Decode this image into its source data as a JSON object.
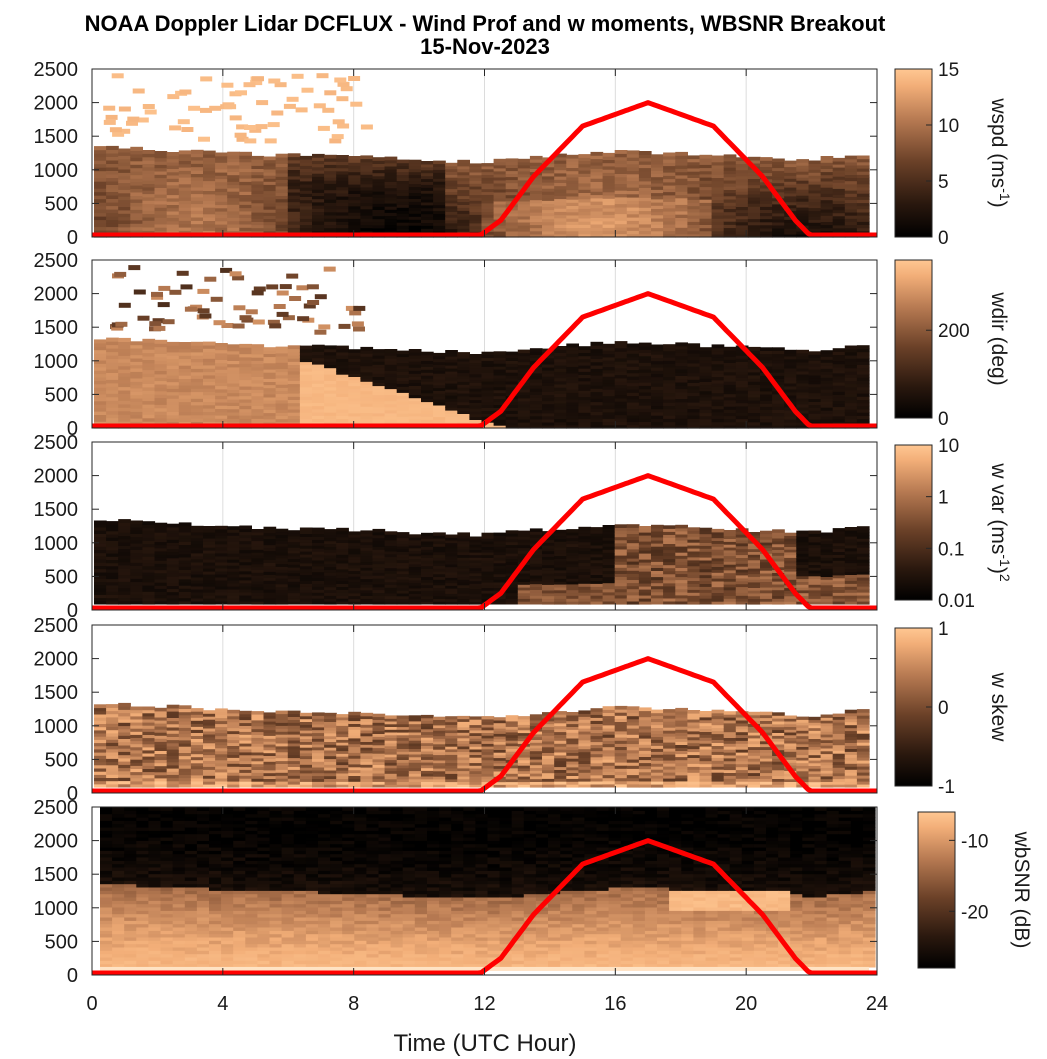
{
  "title": "NOAA Doppler Lidar DCFLUX - Wind Prof and w moments, WBSNR Breakout",
  "subtitle": "15-Nov-2023",
  "colors": {
    "colormap": [
      "#000000",
      "#2a180e",
      "#6b4128",
      "#b77a52",
      "#f2ae78",
      "#ffc792"
    ],
    "sun_curve": "#ff0000",
    "axes": "#262626",
    "grid": "#dcdcdc"
  },
  "chart_data": [
    {
      "type": "heatmap",
      "panel": "wspd",
      "x_unit": "UTC hour",
      "xlim": [
        0,
        24
      ],
      "ylim": [
        0,
        2500
      ],
      "yticks": [
        0,
        500,
        1000,
        1500,
        2000,
        2500
      ],
      "boundary_layer_top_m": {
        "x": [
          0,
          2,
          4,
          6,
          8,
          10,
          12,
          14,
          16,
          18,
          20,
          22,
          24
        ],
        "y": [
          1350,
          1300,
          1250,
          1220,
          1200,
          1150,
          1120,
          1200,
          1280,
          1250,
          1200,
          1150,
          1250
        ]
      },
      "colorbar": {
        "label": "wspd (ms<sup>-1</sup>)",
        "label_plain": "wspd (ms-1)",
        "range": [
          0,
          15
        ],
        "ticks": [
          "0",
          "5",
          "10",
          "15"
        ]
      },
      "sun_elevation_curve": {
        "x": [
          0,
          11.8,
          12.5,
          13.5,
          15,
          17,
          19,
          20.5,
          21.5,
          22,
          24
        ],
        "y": [
          0,
          0,
          250,
          900,
          1650,
          2000,
          1650,
          900,
          250,
          0,
          0
        ]
      }
    },
    {
      "type": "heatmap",
      "panel": "wdir",
      "xlim": [
        0,
        24
      ],
      "ylim": [
        0,
        2500
      ],
      "yticks": [
        0,
        500,
        1000,
        1500,
        2000,
        2500
      ],
      "colorbar": {
        "label": "wdir (deg)",
        "range": [
          0,
          360
        ],
        "ticks": [
          "0",
          "200"
        ]
      },
      "sun_elevation_curve": {
        "x": [
          0,
          11.8,
          12.5,
          13.5,
          15,
          17,
          19,
          20.5,
          21.5,
          22,
          24
        ],
        "y": [
          0,
          0,
          250,
          900,
          1650,
          2000,
          1650,
          900,
          250,
          0,
          0
        ]
      }
    },
    {
      "type": "heatmap",
      "panel": "w var",
      "xlim": [
        0,
        24
      ],
      "ylim": [
        0,
        2500
      ],
      "yticks": [
        0,
        500,
        1000,
        1500,
        2000,
        2500
      ],
      "colorbar": {
        "label": "w var (ms<sup>-1</sup>)<sup>2</sup>",
        "label_plain": "w var (ms-1)2",
        "scale": "log",
        "range": [
          0.01,
          10
        ],
        "ticks": [
          "0.01",
          "0.1",
          "1",
          "10"
        ]
      },
      "sun_elevation_curve": {
        "x": [
          0,
          11.8,
          12.5,
          13.5,
          15,
          17,
          19,
          20.5,
          21.5,
          22,
          24
        ],
        "y": [
          0,
          0,
          250,
          900,
          1650,
          2000,
          1650,
          900,
          250,
          0,
          0
        ]
      }
    },
    {
      "type": "heatmap",
      "panel": "w skew",
      "xlim": [
        0,
        24
      ],
      "ylim": [
        0,
        2500
      ],
      "yticks": [
        0,
        500,
        1000,
        1500,
        2000,
        2500
      ],
      "colorbar": {
        "label": "w skew",
        "range": [
          -1,
          1
        ],
        "ticks": [
          "-1",
          "0",
          "1"
        ]
      },
      "sun_elevation_curve": {
        "x": [
          0,
          11.8,
          12.5,
          13.5,
          15,
          17,
          19,
          20.5,
          21.5,
          22,
          24
        ],
        "y": [
          0,
          0,
          250,
          900,
          1650,
          2000,
          1650,
          900,
          250,
          0,
          0
        ]
      }
    },
    {
      "type": "heatmap",
      "panel": "wbSNR",
      "xlim": [
        0,
        24
      ],
      "ylim": [
        0,
        2500
      ],
      "yticks": [
        0,
        500,
        1000,
        1500,
        2000,
        2500
      ],
      "xticks": [
        "0",
        "4",
        "8",
        "12",
        "16",
        "20",
        "24"
      ],
      "xlabel": "Time (UTC Hour)",
      "colorbar": {
        "label": "wbSNR (dB)",
        "range": [
          -28,
          -6
        ],
        "ticks": [
          "-20",
          "-10"
        ]
      },
      "sun_elevation_curve": {
        "x": [
          0,
          11.8,
          12.5,
          13.5,
          15,
          17,
          19,
          20.5,
          21.5,
          22,
          24
        ],
        "y": [
          0,
          0,
          250,
          900,
          1650,
          2000,
          1650,
          900,
          250,
          0,
          0
        ]
      }
    }
  ]
}
